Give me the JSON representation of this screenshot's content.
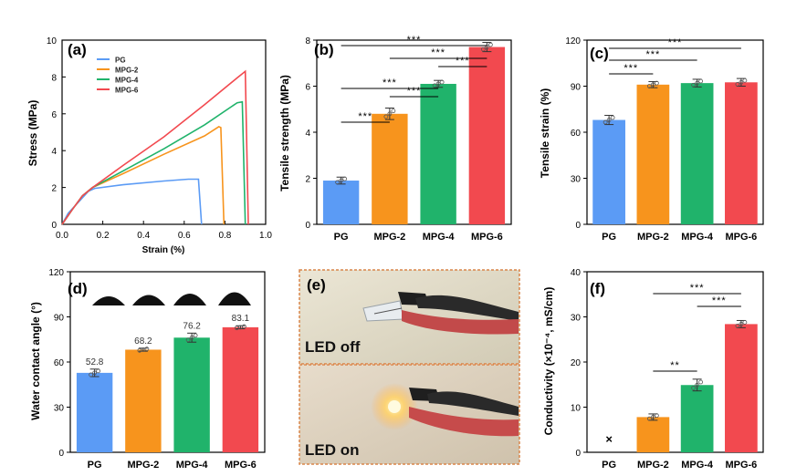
{
  "chart_data": [
    {
      "panel": "(a)",
      "type": "line",
      "xlabel": "Strain (%)",
      "ylabel": "Stress (MPa)",
      "xlim": [
        0.0,
        1.0
      ],
      "ylim": [
        0,
        10
      ],
      "xticks": [
        "0.0",
        "0.2",
        "0.4",
        "0.6",
        "0.8",
        "1.0"
      ],
      "yticks": [
        "0",
        "2",
        "4",
        "6",
        "8",
        "10"
      ],
      "legend_position": "top-left",
      "series": [
        {
          "name": "PG",
          "color": "#5b9bf5",
          "points": [
            [
              0,
              0
            ],
            [
              0.03,
              0.6
            ],
            [
              0.08,
              1.2
            ],
            [
              0.13,
              1.8
            ],
            [
              0.16,
              1.95
            ],
            [
              0.3,
              2.15
            ],
            [
              0.5,
              2.35
            ],
            [
              0.62,
              2.45
            ],
            [
              0.67,
              2.45
            ],
            [
              0.685,
              0
            ]
          ]
        },
        {
          "name": "MPG-2",
          "color": "#f7941d",
          "points": [
            [
              0,
              0
            ],
            [
              0.05,
              0.8
            ],
            [
              0.1,
              1.55
            ],
            [
              0.15,
              2.0
            ],
            [
              0.3,
              2.75
            ],
            [
              0.5,
              3.8
            ],
            [
              0.7,
              4.8
            ],
            [
              0.77,
              5.3
            ],
            [
              0.78,
              5.25
            ],
            [
              0.795,
              0
            ]
          ]
        },
        {
          "name": "MPG-4",
          "color": "#20b36b",
          "points": [
            [
              0,
              0
            ],
            [
              0.05,
              0.8
            ],
            [
              0.1,
              1.55
            ],
            [
              0.15,
              2.0
            ],
            [
              0.3,
              2.9
            ],
            [
              0.5,
              4.1
            ],
            [
              0.7,
              5.4
            ],
            [
              0.86,
              6.6
            ],
            [
              0.885,
              6.65
            ],
            [
              0.9,
              0
            ]
          ]
        },
        {
          "name": "MPG-6",
          "color": "#f2494f",
          "points": [
            [
              0,
              0
            ],
            [
              0.05,
              0.8
            ],
            [
              0.1,
              1.55
            ],
            [
              0.15,
              2.0
            ],
            [
              0.3,
              3.2
            ],
            [
              0.5,
              4.75
            ],
            [
              0.7,
              6.5
            ],
            [
              0.86,
              7.95
            ],
            [
              0.9,
              8.3
            ],
            [
              0.915,
              0
            ]
          ]
        }
      ]
    },
    {
      "panel": "(b)",
      "type": "bar",
      "ylabel": "Tensile strength (MPa)",
      "categories": [
        "PG",
        "MPG-2",
        "MPG-4",
        "MPG-6"
      ],
      "values": [
        1.9,
        4.8,
        6.1,
        7.7
      ],
      "errors": [
        0.15,
        0.25,
        0.15,
        0.2
      ],
      "ylim": [
        0,
        8
      ],
      "yticks": [
        "0",
        "2",
        "4",
        "6",
        "8"
      ],
      "colors": [
        "#5b9bf5",
        "#f7941d",
        "#20b36b",
        "#f2494f"
      ],
      "significance": [
        {
          "from": 0,
          "to": 1,
          "label": "***"
        },
        {
          "from": 1,
          "to": 2,
          "label": "***"
        },
        {
          "from": 2,
          "to": 3,
          "label": "***"
        },
        {
          "from": 0,
          "to": 2,
          "label": "***"
        },
        {
          "from": 1,
          "to": 3,
          "label": "***"
        },
        {
          "from": 0,
          "to": 3,
          "label": "***"
        }
      ]
    },
    {
      "panel": "(c)",
      "type": "bar",
      "ylabel": "Tensile strain (%)",
      "categories": [
        "PG",
        "MPG-2",
        "MPG-4",
        "MPG-6"
      ],
      "values": [
        68,
        91,
        92,
        92.5
      ],
      "errors": [
        3,
        2,
        2.5,
        2.5
      ],
      "ylim": [
        0,
        120
      ],
      "yticks": [
        "0",
        "30",
        "60",
        "90",
        "120"
      ],
      "colors": [
        "#5b9bf5",
        "#f7941d",
        "#20b36b",
        "#f2494f"
      ],
      "significance": [
        {
          "from": 0,
          "to": 1,
          "label": "***"
        },
        {
          "from": 0,
          "to": 2,
          "label": "***"
        },
        {
          "from": 0,
          "to": 3,
          "label": "***"
        }
      ]
    },
    {
      "panel": "(d)",
      "type": "bar",
      "ylabel": "Water contact angle (°)",
      "categories": [
        "PG",
        "MPG-2",
        "MPG-4",
        "MPG-6"
      ],
      "values": [
        52.8,
        68.2,
        76.2,
        83.1
      ],
      "value_labels": [
        "52.8",
        "68.2",
        "76.2",
        "83.1"
      ],
      "errors": [
        2.5,
        1,
        3,
        1
      ],
      "ylim": [
        0,
        120
      ],
      "yticks": [
        "0",
        "30",
        "60",
        "90",
        "120"
      ],
      "colors": [
        "#5b9bf5",
        "#f7941d",
        "#20b36b",
        "#f2494f"
      ],
      "significance": []
    },
    {
      "panel": "(f)",
      "type": "bar",
      "ylabel": "Conductivity (×10⁻⁴, mS/cm)",
      "categories": [
        "PG",
        "MPG-2",
        "MPG-4",
        "MPG-6"
      ],
      "values": [
        null,
        7.8,
        14.9,
        28.4
      ],
      "errors": [
        0,
        0.7,
        1.3,
        0.8
      ],
      "ylim": [
        0,
        40
      ],
      "yticks": [
        "0",
        "10",
        "20",
        "30",
        "40"
      ],
      "colors": [
        "#5b9bf5",
        "#f7941d",
        "#20b36b",
        "#f2494f"
      ],
      "missing_marker": "×",
      "significance": [
        {
          "from": 1,
          "to": 2,
          "label": "**"
        },
        {
          "from": 2,
          "to": 3,
          "label": "***"
        },
        {
          "from": 1,
          "to": 3,
          "label": "***"
        }
      ]
    }
  ],
  "photo_panel": {
    "panel": "(e)",
    "top_label": "LED off",
    "bottom_label": "LED on",
    "border_color": "#d9854a"
  }
}
